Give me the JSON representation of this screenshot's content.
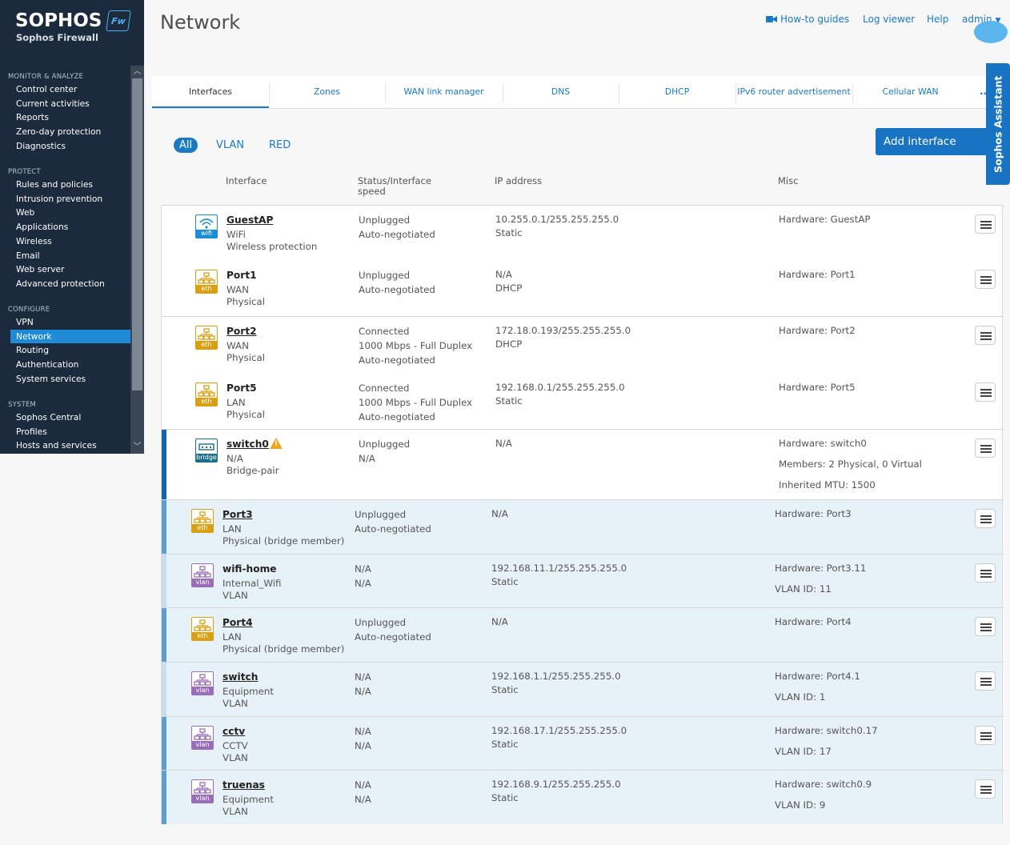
{
  "brand": {
    "name": "SOPHOS",
    "product": "Sophos Firewall",
    "badge": "Fw"
  },
  "sidebar": {
    "sections": [
      {
        "title": "MONITOR & ANALYZE",
        "items": [
          "Control center",
          "Current activities",
          "Reports",
          "Zero-day protection",
          "Diagnostics"
        ]
      },
      {
        "title": "PROTECT",
        "items": [
          "Rules and policies",
          "Intrusion prevention",
          "Web",
          "Applications",
          "Wireless",
          "Email",
          "Web server",
          "Advanced protection"
        ]
      },
      {
        "title": "CONFIGURE",
        "items": [
          "VPN",
          "Network",
          "Routing",
          "Authentication",
          "System services"
        ]
      },
      {
        "title": "SYSTEM",
        "items": [
          "Sophos Central",
          "Profiles",
          "Hosts and services"
        ]
      }
    ],
    "active_item": "Network"
  },
  "header": {
    "title": "Network",
    "links": {
      "howto": "How-to guides",
      "log": "Log viewer",
      "help": "Help",
      "user": "admin"
    }
  },
  "tabs": [
    "Interfaces",
    "Zones",
    "WAN link manager",
    "DNS",
    "DHCP",
    "IPv6 router advertisement",
    "Cellular WAN"
  ],
  "active_tab": "Interfaces",
  "assistant": "Sophos Assistant",
  "filters": [
    "All",
    "VLAN",
    "RED"
  ],
  "active_filter": "All",
  "add_button": "Add interface",
  "columns": {
    "interface": "Interface",
    "status": "Status/Interface speed",
    "ip": "IP address",
    "misc": "Misc"
  },
  "rows": [
    {
      "name": "GuestAP",
      "type": "wifi",
      "line2": "WiFi",
      "line3": "Wireless protection",
      "status": [
        "Unplugged",
        "Auto-negotiated"
      ],
      "ip": [
        "10.255.0.1/255.255.255.0",
        "Static"
      ],
      "misc": [
        "Hardware:  GuestAP"
      ]
    },
    {
      "name": "Port1",
      "type": "eth",
      "line2": "WAN",
      "line3": "Physical",
      "status": [
        "Unplugged",
        "Auto-negotiated"
      ],
      "ip": [
        "N/A",
        "DHCP"
      ],
      "misc": [
        "Hardware:  Port1"
      ]
    },
    {
      "name": "Port2",
      "type": "eth",
      "line2": "WAN",
      "line3": "Physical",
      "status": [
        "Connected",
        "1000 Mbps - Full Duplex",
        "Auto-negotiated"
      ],
      "ip": [
        "172.18.0.193/255.255.255.0",
        "DHCP"
      ],
      "misc": [
        "Hardware:  Port2"
      ]
    },
    {
      "name": "Port5",
      "type": "eth",
      "line2": "LAN",
      "line3": "Physical",
      "status": [
        "Connected",
        "1000 Mbps - Full Duplex",
        "Auto-negotiated"
      ],
      "ip": [
        "192.168.0.1/255.255.255.0",
        "Static"
      ],
      "misc": [
        "Hardware:  Port5"
      ]
    },
    {
      "name": "switch0",
      "type": "bridge",
      "line2": "N/A",
      "line3": "Bridge-pair",
      "status": [
        "Unplugged",
        "N/A"
      ],
      "ip": [
        "N/A"
      ],
      "misc": [
        "Hardware:  switch0",
        "Members: 2 Physical, 0 Virtual",
        "Inherited MTU: 1500"
      ]
    },
    {
      "name": "Port3",
      "type": "eth",
      "line2": "LAN",
      "line3": "Physical (bridge member)",
      "status": [
        "Unplugged",
        "Auto-negotiated"
      ],
      "ip": [
        "N/A"
      ],
      "misc": [
        "Hardware:  Port3"
      ]
    },
    {
      "name": "wifi-home",
      "type": "vlan",
      "line2": "Internal_Wifi",
      "line3": "VLAN",
      "status": [
        "N/A",
        "N/A"
      ],
      "ip": [
        "192.168.11.1/255.255.255.0",
        "Static"
      ],
      "misc": [
        "Hardware:  Port3.11",
        "VLAN ID: 11"
      ]
    },
    {
      "name": "Port4",
      "type": "eth",
      "line2": "LAN",
      "line3": "Physical (bridge member)",
      "status": [
        "Unplugged",
        "Auto-negotiated"
      ],
      "ip": [
        "N/A"
      ],
      "misc": [
        "Hardware:  Port4"
      ]
    },
    {
      "name": "switch",
      "type": "vlan",
      "line2": "Equipment",
      "line3": "VLAN",
      "status": [
        "N/A",
        "N/A"
      ],
      "ip": [
        "192.168.1.1/255.255.255.0",
        "Static"
      ],
      "misc": [
        "Hardware:  Port4.1",
        "VLAN ID: 1"
      ]
    },
    {
      "name": "cctv",
      "type": "vlan",
      "line2": "CCTV",
      "line3": "VLAN",
      "status": [
        "N/A",
        "N/A"
      ],
      "ip": [
        "192.168.17.1/255.255.255.0",
        "Static"
      ],
      "misc": [
        "Hardware:  switch0.17",
        "VLAN ID: 17"
      ]
    },
    {
      "name": "truenas",
      "type": "vlan",
      "line2": "Equipment",
      "line3": "VLAN",
      "status": [
        "N/A",
        "N/A"
      ],
      "ip": [
        "192.168.9.1/255.255.255.0",
        "Static"
      ],
      "misc": [
        "Hardware:  switch0.9",
        "VLAN ID: 9"
      ]
    }
  ],
  "icon_colors": {
    "wifi": "#1a8fd4",
    "eth": "#d9a013",
    "bridge": "#1a6f86",
    "vlan": "#9a6db8"
  },
  "icon_labels": {
    "wifi": "wifi",
    "eth": "eth",
    "bridge": "bridge",
    "vlan": "vlan"
  }
}
